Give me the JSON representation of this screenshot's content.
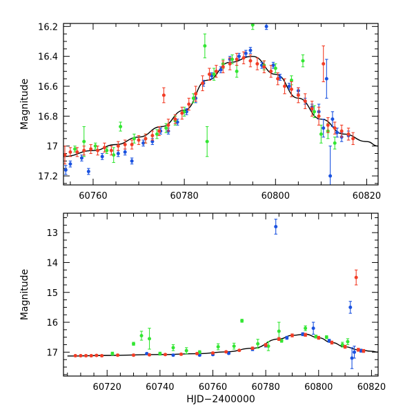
{
  "chart_data": [
    {
      "type": "scatter",
      "panel": "top",
      "xlabel": "",
      "ylabel": "Magnitude",
      "xlim": [
        60753.5,
        60822.5
      ],
      "ylim": [
        17.26,
        16.18
      ],
      "y_inverted": true,
      "xticks": [
        60760,
        60780,
        60800,
        60820
      ],
      "yticks": [
        16.2,
        16.4,
        16.6,
        16.8,
        17.0,
        17.2
      ],
      "ytick_labels": [
        "16.2",
        "16.4",
        "16.6",
        "16.8",
        "17",
        "17.2"
      ],
      "grid": false,
      "series": [
        {
          "color": "#1a52e0",
          "points": [
            [
              60754.0,
              17.16,
              0.03
            ],
            [
              60755.0,
              17.12,
              0.02
            ],
            [
              60757.5,
              17.08,
              0.02
            ],
            [
              60759.0,
              17.17,
              0.02
            ],
            [
              60762.0,
              17.07,
              0.02
            ],
            [
              60765.5,
              17.05,
              0.02
            ],
            [
              60767.0,
              17.04,
              0.02
            ],
            [
              60768.5,
              17.1,
              0.02
            ],
            [
              60771.0,
              16.98,
              0.02
            ],
            [
              60773.0,
              16.97,
              0.02
            ],
            [
              60774.8,
              16.9,
              0.02
            ],
            [
              60776.5,
              16.9,
              0.02
            ],
            [
              60778.5,
              16.84,
              0.02
            ],
            [
              60780.5,
              16.77,
              0.02
            ],
            [
              60782.5,
              16.68,
              0.03
            ],
            [
              60784.2,
              16.58,
              0.02
            ],
            [
              60786.0,
              16.53,
              0.02
            ],
            [
              60788.0,
              16.49,
              0.02
            ],
            [
              60790.0,
              16.42,
              0.02
            ],
            [
              60792.0,
              16.4,
              0.02
            ],
            [
              60793.5,
              16.38,
              0.02
            ],
            [
              60794.5,
              16.36,
              0.02
            ],
            [
              60797.0,
              16.46,
              0.02
            ],
            [
              60798.0,
              16.2,
              0.02
            ],
            [
              60799.5,
              16.46,
              0.02
            ],
            [
              60801.0,
              16.54,
              0.02
            ],
            [
              60803.0,
              16.6,
              0.02
            ],
            [
              60805.0,
              16.63,
              0.02
            ],
            [
              60806.5,
              16.7,
              0.02
            ],
            [
              60808.0,
              16.74,
              0.02
            ],
            [
              60809.5,
              16.77,
              0.05
            ],
            [
              60810.5,
              16.88,
              0.06
            ],
            [
              60811.2,
              16.55,
              0.13
            ],
            [
              60812.0,
              17.2,
              0.2
            ],
            [
              60812.5,
              16.82,
              0.05
            ],
            [
              60813.5,
              16.91,
              0.03
            ],
            [
              60814.5,
              16.94,
              0.03
            ],
            [
              60816.0,
              16.93,
              0.03
            ]
          ]
        },
        {
          "color": "#33e633",
          "points": [
            [
              60756.0,
              17.02,
              0.02
            ],
            [
              60758.0,
              16.97,
              0.1
            ],
            [
              60760.5,
              17.0,
              0.02
            ],
            [
              60763.0,
              17.03,
              0.02
            ],
            [
              60764.5,
              17.06,
              0.05
            ],
            [
              60766.0,
              16.87,
              0.03
            ],
            [
              60769.0,
              16.95,
              0.03
            ],
            [
              60771.5,
              16.95,
              0.03
            ],
            [
              60774.0,
              16.92,
              0.03
            ],
            [
              60776.0,
              16.88,
              0.03
            ],
            [
              60778.0,
              16.83,
              0.03
            ],
            [
              60780.0,
              16.77,
              0.03
            ],
            [
              60782.0,
              16.68,
              0.03
            ],
            [
              60784.5,
              16.33,
              0.08
            ],
            [
              60785.0,
              16.97,
              0.1
            ],
            [
              60786.5,
              16.52,
              0.04
            ],
            [
              60788.5,
              16.45,
              0.03
            ],
            [
              60790.5,
              16.42,
              0.03
            ],
            [
              60791.5,
              16.5,
              0.04
            ],
            [
              60795.0,
              16.19,
              0.03
            ],
            [
              60797.5,
              16.46,
              0.03
            ],
            [
              60800.0,
              16.48,
              0.03
            ],
            [
              60803.5,
              16.56,
              0.03
            ],
            [
              60806.0,
              16.43,
              0.04
            ],
            [
              60808.5,
              16.77,
              0.04
            ],
            [
              60810.0,
              16.92,
              0.06
            ],
            [
              60811.5,
              16.9,
              0.05
            ],
            [
              60813.0,
              16.98,
              0.04
            ]
          ]
        },
        {
          "color": "#f23d26",
          "points": [
            [
              60753.8,
              17.06,
              0.06
            ],
            [
              60755.0,
              17.04,
              0.03
            ],
            [
              60756.5,
              17.04,
              0.03
            ],
            [
              60758.0,
              17.03,
              0.03
            ],
            [
              60759.5,
              17.02,
              0.03
            ],
            [
              60761.0,
              17.03,
              0.03
            ],
            [
              60762.5,
              17.01,
              0.03
            ],
            [
              60764.0,
              17.03,
              0.03
            ],
            [
              60765.5,
              17.0,
              0.03
            ],
            [
              60767.0,
              16.99,
              0.03
            ],
            [
              60768.5,
              16.99,
              0.03
            ],
            [
              60770.0,
              16.96,
              0.03
            ],
            [
              60771.5,
              16.95,
              0.03
            ],
            [
              60773.0,
              16.93,
              0.03
            ],
            [
              60774.5,
              16.9,
              0.03
            ],
            [
              60775.5,
              16.66,
              0.05
            ],
            [
              60776.5,
              16.86,
              0.04
            ],
            [
              60778.0,
              16.82,
              0.03
            ],
            [
              60779.5,
              16.78,
              0.04
            ],
            [
              60781.0,
              16.72,
              0.04
            ],
            [
              60782.5,
              16.65,
              0.05
            ],
            [
              60784.0,
              16.58,
              0.05
            ],
            [
              60785.5,
              16.52,
              0.04
            ],
            [
              60787.0,
              16.5,
              0.04
            ],
            [
              60788.5,
              16.47,
              0.04
            ],
            [
              60790.0,
              16.45,
              0.04
            ],
            [
              60791.5,
              16.42,
              0.04
            ],
            [
              60793.0,
              16.41,
              0.04
            ],
            [
              60794.5,
              16.43,
              0.04
            ],
            [
              60796.0,
              16.45,
              0.04
            ],
            [
              60797.5,
              16.47,
              0.04
            ],
            [
              60799.0,
              16.5,
              0.04
            ],
            [
              60800.5,
              16.55,
              0.04
            ],
            [
              60802.0,
              16.6,
              0.05
            ],
            [
              60803.5,
              16.62,
              0.05
            ],
            [
              60805.0,
              16.66,
              0.05
            ],
            [
              60806.5,
              16.7,
              0.05
            ],
            [
              60808.0,
              16.75,
              0.05
            ],
            [
              60809.5,
              16.8,
              0.06
            ],
            [
              60810.5,
              16.45,
              0.12
            ],
            [
              60811.5,
              16.86,
              0.05
            ],
            [
              60813.0,
              16.88,
              0.04
            ],
            [
              60814.5,
              16.9,
              0.04
            ],
            [
              60816.0,
              16.92,
              0.04
            ],
            [
              60817.0,
              16.95,
              0.04
            ]
          ]
        }
      ],
      "model_curve": [
        [
          60753.5,
          17.07
        ],
        [
          60760,
          17.03
        ],
        [
          60765,
          16.99
        ],
        [
          60770,
          16.94
        ],
        [
          60775,
          16.87
        ],
        [
          60780,
          16.76
        ],
        [
          60785,
          16.56
        ],
        [
          60790,
          16.44
        ],
        [
          60795,
          16.4
        ],
        [
          60800,
          16.52
        ],
        [
          60805,
          16.68
        ],
        [
          60810,
          16.82
        ],
        [
          60815,
          16.92
        ],
        [
          60820,
          16.97
        ],
        [
          60822.5,
          17.0
        ]
      ]
    },
    {
      "type": "scatter",
      "panel": "bottom",
      "xlabel": "HJD−2400000",
      "ylabel": "Magnitude",
      "xlim": [
        60703.5,
        60822.5
      ],
      "ylim": [
        17.8,
        12.35
      ],
      "y_inverted": true,
      "xticks": [
        60720,
        60740,
        60760,
        60780,
        60800,
        60820
      ],
      "yticks": [
        13,
        14,
        15,
        16,
        17
      ],
      "ytick_labels": [
        "13",
        "14",
        "15",
        "16",
        "17"
      ],
      "grid": false,
      "series": [
        {
          "color": "#1a52e0",
          "points": [
            [
              60735.0,
              17.05,
              0.03
            ],
            [
              60745.0,
              17.1,
              0.03
            ],
            [
              60755.0,
              17.1,
              0.03
            ],
            [
              60760.0,
              17.08,
              0.03
            ],
            [
              60766.0,
              17.04,
              0.03
            ],
            [
              60775.0,
              16.9,
              0.05
            ],
            [
              60780.0,
              16.78,
              0.05
            ],
            [
              60783.8,
              12.8,
              0.25
            ],
            [
              60788.0,
              16.52,
              0.05
            ],
            [
              60794.0,
              16.4,
              0.05
            ],
            [
              60798.0,
              16.2,
              0.2
            ],
            [
              60804.0,
              16.62,
              0.05
            ],
            [
              60812.0,
              15.5,
              0.2
            ],
            [
              60812.6,
              17.2,
              0.35
            ],
            [
              60813.5,
              17.0,
              0.2
            ],
            [
              60816.0,
              16.95,
              0.05
            ]
          ]
        },
        {
          "color": "#33e633",
          "points": [
            [
              60722.0,
              17.05,
              0.05
            ],
            [
              60730.0,
              16.72,
              0.05
            ],
            [
              60733.0,
              16.45,
              0.15
            ],
            [
              60736.0,
              16.55,
              0.35
            ],
            [
              60740.0,
              17.05,
              0.05
            ],
            [
              60745.0,
              16.85,
              0.1
            ],
            [
              60750.0,
              16.95,
              0.1
            ],
            [
              60755.0,
              17.0,
              0.05
            ],
            [
              60762.0,
              16.82,
              0.1
            ],
            [
              60768.0,
              16.8,
              0.1
            ],
            [
              60771.0,
              15.95,
              0.05
            ],
            [
              60777.0,
              16.72,
              0.15
            ],
            [
              60781.0,
              16.8,
              0.15
            ],
            [
              60785.0,
              16.3,
              0.3
            ],
            [
              60786.0,
              16.62,
              0.05
            ],
            [
              60795.0,
              16.2,
              0.08
            ],
            [
              60799.0,
              16.48,
              0.05
            ],
            [
              60803.0,
              16.5,
              0.05
            ],
            [
              60809.0,
              16.75,
              0.08
            ],
            [
              60811.0,
              16.65,
              0.1
            ]
          ]
        },
        {
          "color": "#f23d26",
          "points": [
            [
              60708.0,
              17.12,
              0.03
            ],
            [
              60710.0,
              17.12,
              0.03
            ],
            [
              60712.0,
              17.12,
              0.03
            ],
            [
              60714.0,
              17.12,
              0.03
            ],
            [
              60716.0,
              17.11,
              0.03
            ],
            [
              60718.0,
              17.12,
              0.03
            ],
            [
              60724.0,
              17.1,
              0.03
            ],
            [
              60730.0,
              17.1,
              0.03
            ],
            [
              60736.0,
              17.09,
              0.03
            ],
            [
              60742.0,
              17.08,
              0.03
            ],
            [
              60748.0,
              17.07,
              0.03
            ],
            [
              60754.0,
              17.05,
              0.03
            ],
            [
              60760.0,
              17.03,
              0.03
            ],
            [
              60765.0,
              16.99,
              0.03
            ],
            [
              60770.0,
              16.94,
              0.03
            ],
            [
              60775.0,
              16.87,
              0.04
            ],
            [
              60780.0,
              16.76,
              0.05
            ],
            [
              60785.0,
              16.56,
              0.05
            ],
            [
              60790.0,
              16.44,
              0.05
            ],
            [
              60795.0,
              16.42,
              0.05
            ],
            [
              60800.0,
              16.52,
              0.05
            ],
            [
              60805.0,
              16.68,
              0.05
            ],
            [
              60810.0,
              16.82,
              0.05
            ],
            [
              60814.2,
              14.5,
              0.25
            ],
            [
              60815.0,
              16.92,
              0.05
            ],
            [
              60817.0,
              16.96,
              0.05
            ]
          ]
        }
      ],
      "model_curve": [
        [
          60705,
          17.13
        ],
        [
          60720,
          17.11
        ],
        [
          60740,
          17.08
        ],
        [
          60755,
          17.05
        ],
        [
          60765,
          16.99
        ],
        [
          60775,
          16.87
        ],
        [
          60785,
          16.56
        ],
        [
          60790,
          16.44
        ],
        [
          60795,
          16.4
        ],
        [
          60800,
          16.52
        ],
        [
          60805,
          16.68
        ],
        [
          60810,
          16.82
        ],
        [
          60815,
          16.92
        ],
        [
          60820,
          16.97
        ],
        [
          60822.5,
          17.0
        ]
      ]
    }
  ]
}
